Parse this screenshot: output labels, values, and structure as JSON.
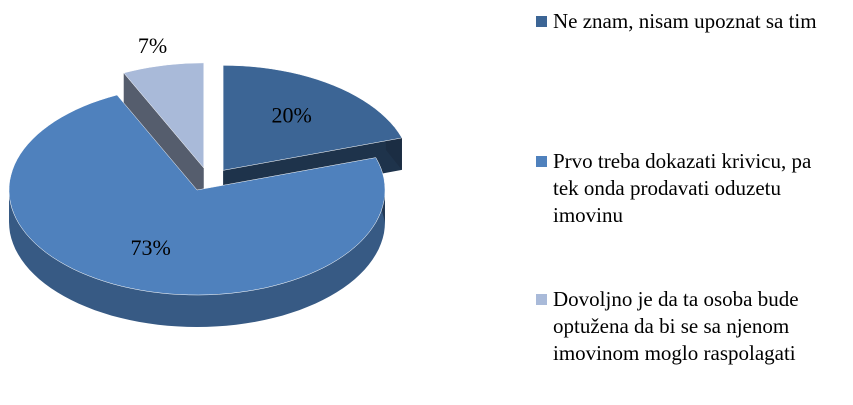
{
  "chart_data": {
    "type": "pie",
    "categories": [
      "Ne znam, nisam upoznat sa tim",
      "Prvo treba dokazati krivicu, pa tek onda prodavati oduzetu imovinu",
      "Dovoljno je da ta osoba bude optužena da bi se sa njenom imovinom moglo raspolagati"
    ],
    "series": [
      {
        "values": [
          20,
          73,
          7
        ],
        "value_labels": [
          "20%",
          "73%",
          "7%"
        ],
        "colors": [
          "#3c6595",
          "#4f81bd",
          "#a9bad9"
        ]
      }
    ],
    "legend": "right"
  }
}
